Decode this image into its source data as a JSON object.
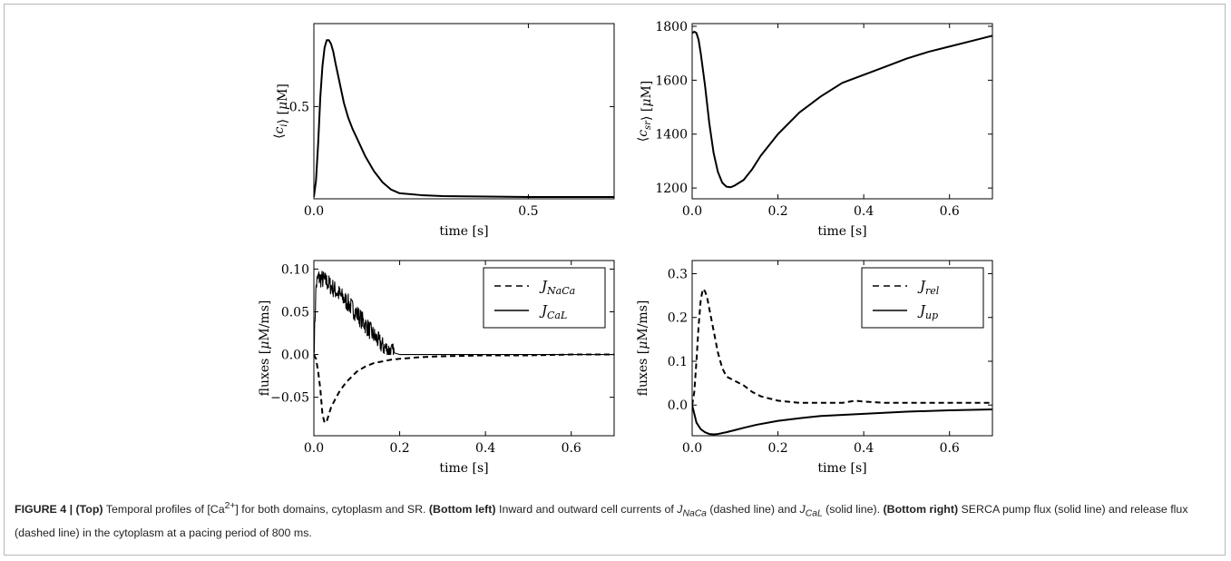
{
  "chart_data": [
    {
      "id": "ci",
      "type": "line",
      "xlabel": "time [s]",
      "ylabel": "⟨c_i⟩ [μM]",
      "xlim": [
        0,
        0.7
      ],
      "ylim": [
        0,
        0.95
      ],
      "xticks": [
        0.0,
        0.5
      ],
      "xtick_labels": [
        "0.0",
        "0.5"
      ],
      "yticks": [
        0.5
      ],
      "ytick_labels": [
        "0.5"
      ],
      "series": [
        {
          "style": "solid",
          "x": [
            0,
            0.005,
            0.01,
            0.015,
            0.02,
            0.025,
            0.03,
            0.035,
            0.04,
            0.045,
            0.05,
            0.06,
            0.07,
            0.08,
            0.09,
            0.1,
            0.12,
            0.14,
            0.16,
            0.18,
            0.2,
            0.25,
            0.3,
            0.4,
            0.5,
            0.6,
            0.7
          ],
          "y": [
            0.01,
            0.1,
            0.3,
            0.55,
            0.72,
            0.82,
            0.86,
            0.86,
            0.84,
            0.8,
            0.74,
            0.63,
            0.52,
            0.44,
            0.38,
            0.33,
            0.23,
            0.15,
            0.09,
            0.05,
            0.03,
            0.02,
            0.015,
            0.012,
            0.01,
            0.01,
            0.01
          ]
        }
      ]
    },
    {
      "id": "csr",
      "type": "line",
      "xlabel": "time [s]",
      "ylabel": "⟨c_sr⟩ [μM]",
      "xlim": [
        0,
        0.7
      ],
      "ylim": [
        1160,
        1810
      ],
      "xticks": [
        0.0,
        0.2,
        0.4,
        0.6
      ],
      "xtick_labels": [
        "0.0",
        "0.2",
        "0.4",
        "0.6"
      ],
      "yticks": [
        1200,
        1400,
        1600,
        1800
      ],
      "ytick_labels": [
        "1200",
        "1400",
        "1600",
        "1800"
      ],
      "series": [
        {
          "style": "solid",
          "x": [
            0,
            0.005,
            0.01,
            0.015,
            0.02,
            0.03,
            0.04,
            0.05,
            0.06,
            0.07,
            0.08,
            0.09,
            0.1,
            0.12,
            0.14,
            0.16,
            0.2,
            0.25,
            0.3,
            0.35,
            0.4,
            0.45,
            0.5,
            0.55,
            0.6,
            0.65,
            0.7
          ],
          "y": [
            1775,
            1780,
            1775,
            1750,
            1700,
            1580,
            1440,
            1330,
            1260,
            1220,
            1205,
            1203,
            1210,
            1230,
            1270,
            1320,
            1400,
            1480,
            1540,
            1590,
            1620,
            1650,
            1680,
            1705,
            1725,
            1745,
            1765
          ]
        }
      ]
    },
    {
      "id": "flux-left",
      "type": "line",
      "xlabel": "time [s]",
      "ylabel": "fluxes [μM/ms]",
      "xlim": [
        0,
        0.7
      ],
      "ylim": [
        -0.095,
        0.11
      ],
      "xticks": [
        0.0,
        0.2,
        0.4,
        0.6
      ],
      "xtick_labels": [
        "0.0",
        "0.2",
        "0.4",
        "0.6"
      ],
      "yticks": [
        -0.05,
        0.0,
        0.05,
        0.1
      ],
      "ytick_labels": [
        "−0.05",
        "0.00",
        "0.05",
        "0.10"
      ],
      "legend": {
        "position": "top-right",
        "entries": [
          {
            "label": "J_NaCa",
            "style": "dashed"
          },
          {
            "label": "J_CaL",
            "style": "solid"
          }
        ]
      },
      "series": [
        {
          "name": "J_NaCa",
          "style": "dashed",
          "x": [
            0,
            0.005,
            0.01,
            0.015,
            0.02,
            0.025,
            0.03,
            0.035,
            0.04,
            0.05,
            0.06,
            0.07,
            0.08,
            0.1,
            0.12,
            0.14,
            0.16,
            0.18,
            0.2,
            0.25,
            0.3,
            0.4,
            0.5,
            0.6,
            0.7
          ],
          "y": [
            0,
            -0.005,
            -0.02,
            -0.04,
            -0.07,
            -0.08,
            -0.078,
            -0.07,
            -0.062,
            -0.052,
            -0.043,
            -0.036,
            -0.03,
            -0.02,
            -0.014,
            -0.01,
            -0.008,
            -0.006,
            -0.005,
            -0.003,
            -0.002,
            -0.001,
            -0.001,
            0,
            0
          ]
        },
        {
          "name": "J_CaL",
          "style": "solid",
          "noise": 0.011,
          "x": [
            0,
            0.005,
            0.01,
            0.02,
            0.03,
            0.04,
            0.06,
            0.08,
            0.1,
            0.12,
            0.14,
            0.16,
            0.18,
            0.2,
            0.22,
            0.7
          ],
          "y": [
            0,
            0.08,
            0.09,
            0.088,
            0.085,
            0.08,
            0.07,
            0.06,
            0.048,
            0.035,
            0.022,
            0.01,
            0.003,
            0,
            0,
            0
          ]
        }
      ]
    },
    {
      "id": "flux-right",
      "type": "line",
      "xlabel": "time [s]",
      "ylabel": "fluxes [μM/ms]",
      "xlim": [
        0,
        0.7
      ],
      "ylim": [
        -0.07,
        0.33
      ],
      "xticks": [
        0.0,
        0.2,
        0.4,
        0.6
      ],
      "xtick_labels": [
        "0.0",
        "0.2",
        "0.4",
        "0.6"
      ],
      "yticks": [
        0.0,
        0.1,
        0.2,
        0.3
      ],
      "ytick_labels": [
        "0.0",
        "0.1",
        "0.2",
        "0.3"
      ],
      "legend": {
        "position": "top-right",
        "entries": [
          {
            "label": "J_rel",
            "style": "dashed"
          },
          {
            "label": "J_up",
            "style": "solid"
          }
        ]
      },
      "series": [
        {
          "name": "J_rel",
          "style": "dashed",
          "x": [
            0,
            0.005,
            0.01,
            0.015,
            0.02,
            0.025,
            0.03,
            0.035,
            0.04,
            0.05,
            0.06,
            0.07,
            0.08,
            0.1,
            0.12,
            0.14,
            0.16,
            0.2,
            0.25,
            0.3,
            0.35,
            0.38,
            0.4,
            0.45,
            0.5,
            0.55,
            0.6,
            0.65,
            0.7
          ],
          "y": [
            0,
            0.03,
            0.1,
            0.18,
            0.24,
            0.265,
            0.26,
            0.245,
            0.22,
            0.17,
            0.12,
            0.085,
            0.065,
            0.055,
            0.045,
            0.03,
            0.02,
            0.01,
            0.005,
            0.005,
            0.005,
            0.01,
            0.008,
            0.005,
            0.005,
            0.005,
            0.005,
            0.005,
            0.005
          ]
        },
        {
          "name": "J_up",
          "style": "solid",
          "x": [
            0,
            0.01,
            0.02,
            0.03,
            0.04,
            0.05,
            0.06,
            0.08,
            0.1,
            0.12,
            0.15,
            0.2,
            0.25,
            0.3,
            0.4,
            0.5,
            0.6,
            0.7
          ],
          "y": [
            0,
            -0.04,
            -0.055,
            -0.062,
            -0.066,
            -0.067,
            -0.066,
            -0.062,
            -0.057,
            -0.052,
            -0.045,
            -0.036,
            -0.03,
            -0.025,
            -0.02,
            -0.015,
            -0.012,
            -0.01
          ]
        }
      ]
    }
  ],
  "caption": {
    "figure_label": "FIGURE 4 |",
    "top_label": "(Top)",
    "top_text_1": " Temporal profiles of [Ca",
    "top_sup": "2+",
    "top_text_2": "] for both domains, cytoplasm and SR. ",
    "bottom_left_label": "(Bottom left)",
    "bottom_left_text_1": " Inward and outward cell currents of ",
    "jnaca_j": "J",
    "jnaca_sub": "NaCa",
    "bottom_left_text_2": " (dashed line) and ",
    "jcal_j": "J",
    "jcal_sub": "CaL",
    "bottom_left_text_3": " (solid line). ",
    "bottom_right_label": "(Bottom right)",
    "bottom_right_text": " SERCA pump flux (solid line) and release flux (dashed line) in the cytoplasm at a pacing period of 800 ms."
  }
}
